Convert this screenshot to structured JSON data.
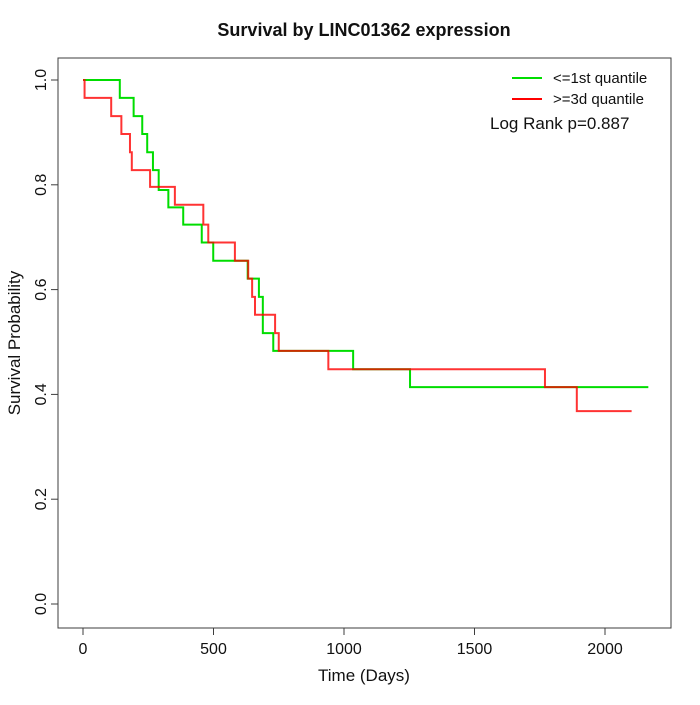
{
  "figure": {
    "background": "#ffffff"
  },
  "chart_data": {
    "type": "line",
    "subtype": "kaplan_meier_step",
    "title": "Survival by LINC01362 expression",
    "xlabel": "Time (Days)",
    "ylabel": "Survival Probability",
    "xlim": [
      0,
      2240
    ],
    "ylim": [
      0.0,
      1.0
    ],
    "grid": false,
    "legend_position": "top-right",
    "annotation": "Log Rank p=0.887",
    "xticks": {
      "values": [
        0,
        500,
        1000,
        1500,
        2000
      ],
      "labels": [
        "0",
        "500",
        "1000",
        "1500",
        "2000"
      ]
    },
    "yticks": {
      "values": [
        0.0,
        0.2,
        0.4,
        0.6,
        0.8,
        1.0
      ],
      "labels": [
        "0.0",
        "0.2",
        "0.4",
        "0.6",
        "0.8",
        "1.0"
      ]
    },
    "series": [
      {
        "name": "<=1st quantile",
        "color": "#00dd00",
        "end_time": 2166,
        "steps": [
          [
            0,
            1.0
          ],
          [
            141,
            0.966
          ],
          [
            194,
            0.931
          ],
          [
            227,
            0.897
          ],
          [
            246,
            0.862
          ],
          [
            268,
            0.828
          ],
          [
            290,
            0.79
          ],
          [
            327,
            0.757
          ],
          [
            384,
            0.724
          ],
          [
            455,
            0.69
          ],
          [
            499,
            0.655
          ],
          [
            631,
            0.621
          ],
          [
            674,
            0.586
          ],
          [
            689,
            0.517
          ],
          [
            729,
            0.483
          ],
          [
            1035,
            0.448
          ],
          [
            1253,
            0.414
          ]
        ]
      },
      {
        "name": ">=3d quantile",
        "color": "#ff0000",
        "end_time": 2102,
        "steps": [
          [
            0,
            1.0
          ],
          [
            6,
            0.966
          ],
          [
            108,
            0.931
          ],
          [
            147,
            0.897
          ],
          [
            180,
            0.862
          ],
          [
            187,
            0.828
          ],
          [
            257,
            0.796
          ],
          [
            352,
            0.762
          ],
          [
            461,
            0.724
          ],
          [
            480,
            0.69
          ],
          [
            582,
            0.655
          ],
          [
            633,
            0.621
          ],
          [
            648,
            0.586
          ],
          [
            659,
            0.552
          ],
          [
            736,
            0.517
          ],
          [
            750,
            0.483
          ],
          [
            940,
            0.448
          ],
          [
            1770,
            0.414
          ],
          [
            1892,
            0.368
          ]
        ]
      }
    ]
  }
}
